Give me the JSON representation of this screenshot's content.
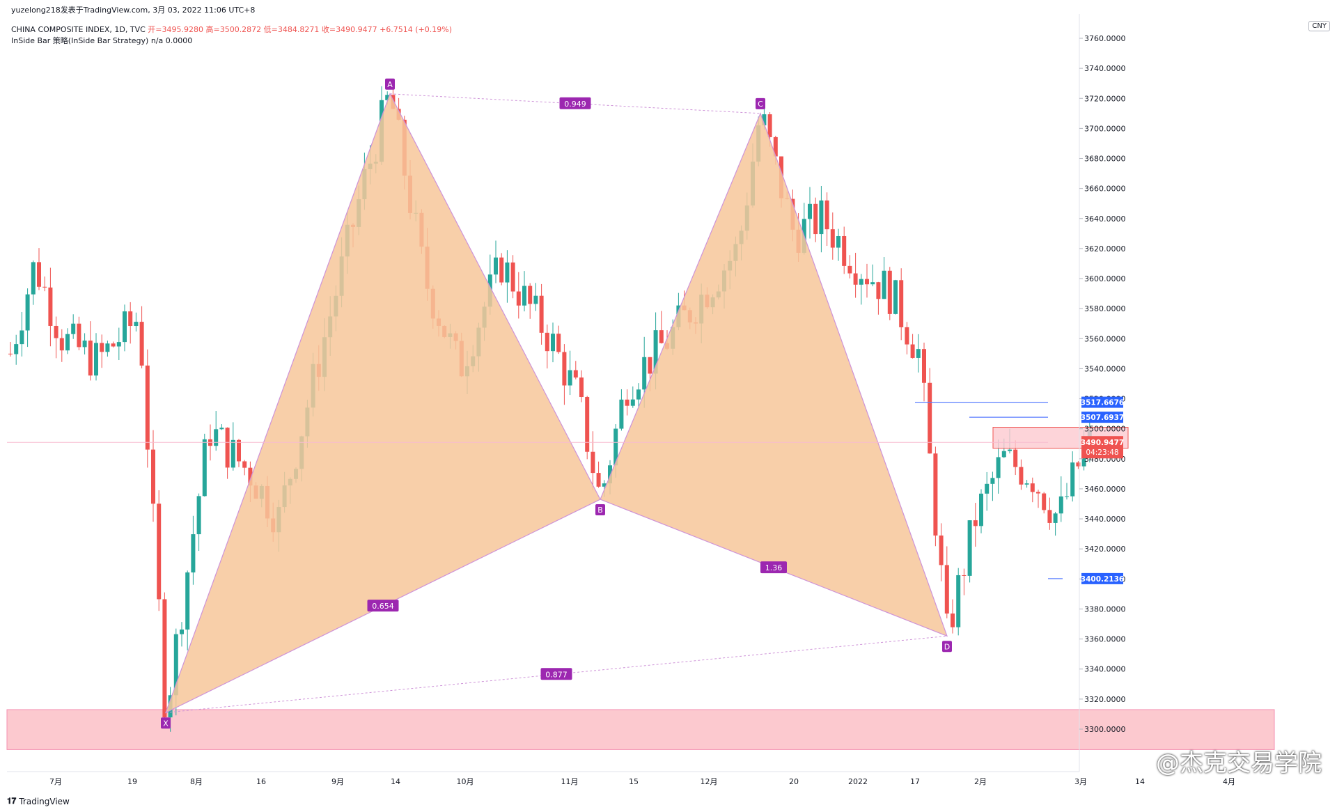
{
  "header": {
    "publisher": "yuzelong218发表于TradingView.com, 3月 03, 2022 11:06 UTC+8",
    "symbol": "CHINA COMPOSITE INDEX, 1D, TVC",
    "ohlc_line": "开=3495.9280 高=3500.2872 低=3484.8271 收=3490.9477 +6.7514 (+0.19%)",
    "strategy": "InSide Bar 策略(InSide Bar Strategy)  n/a  0.0000"
  },
  "currency": "CNY",
  "footer": {
    "brand": "TradingView"
  },
  "credit": "@杰克交易学院",
  "colors": {
    "up": "#26a69a",
    "down": "#ef5350",
    "pattern_fill": "#f7c79a",
    "pattern_edge": "#ce93d8",
    "label_bg": "#9c27b0",
    "zone": "#fcc9cf",
    "level_line": "#5b7fff"
  },
  "chart_data": {
    "type": "candlestick",
    "ylim": [
      3290,
      3770
    ],
    "y_ticks": [
      "3760.0000",
      "3740.0000",
      "3720.0000",
      "3700.0000",
      "3680.0000",
      "3660.0000",
      "3640.0000",
      "3620.0000",
      "3600.0000",
      "3580.0000",
      "3560.0000",
      "3540.0000",
      "3520.0000",
      "3500.0000",
      "3480.0000",
      "3460.0000",
      "3440.0000",
      "3420.0000",
      "3400.0000",
      "3380.0000",
      "3360.0000",
      "3340.0000",
      "3320.0000",
      "3300.0000"
    ],
    "x_labels": [
      "7月",
      "19",
      "8月",
      "16",
      "9月",
      "14",
      "10月",
      "11月",
      "15",
      "12月",
      "20",
      "2022",
      "17",
      "2月",
      "3月",
      "14",
      "4月"
    ],
    "pattern": {
      "name": "Bat / harmonic XABCD",
      "points": [
        {
          "label": "X",
          "price": 3311
        },
        {
          "label": "A",
          "price": 3723
        },
        {
          "label": "B",
          "price": 3453
        },
        {
          "label": "C",
          "price": 3710
        },
        {
          "label": "D",
          "price": 3362
        }
      ],
      "ratios": [
        {
          "between": "XA-AB",
          "value": "0.654"
        },
        {
          "between": "AC",
          "value": "0.949"
        },
        {
          "between": "BC-CD",
          "value": "1.36"
        },
        {
          "between": "XD",
          "value": "0.877"
        }
      ]
    },
    "levels": [
      {
        "price": "3517.6676",
        "kind": "resistance"
      },
      {
        "price": "3507.6937",
        "kind": "resistance"
      },
      {
        "price": "3400.2136",
        "kind": "support"
      }
    ],
    "last_price": "3490.9477",
    "countdown": "04:23:48",
    "zones": [
      {
        "name": "demand zone",
        "low": 3291,
        "high": 3313
      },
      {
        "name": "inside bar box",
        "low": 3487,
        "high": 3501
      }
    ]
  }
}
